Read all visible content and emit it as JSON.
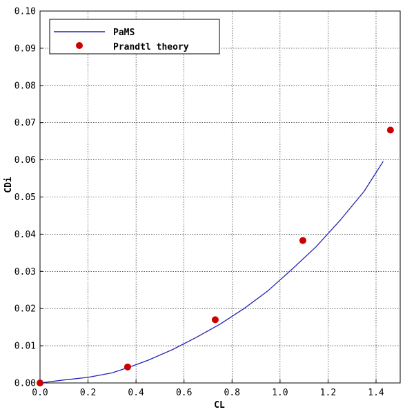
{
  "chart_data": {
    "type": "line",
    "xlabel": "CL",
    "ylabel": "CDi",
    "xlim": [
      0,
      1.5
    ],
    "ylim": [
      0,
      0.1
    ],
    "x_ticks": [
      0.0,
      0.2,
      0.4,
      0.6,
      0.8,
      1.0,
      1.2,
      1.4
    ],
    "x_tick_labels": [
      "0.0",
      "0.2",
      "0.4",
      "0.6",
      "0.8",
      "1.0",
      "1.2",
      "1.4"
    ],
    "y_ticks": [
      0.0,
      0.01,
      0.02,
      0.03,
      0.04,
      0.05,
      0.06,
      0.07,
      0.08,
      0.09,
      0.1
    ],
    "y_tick_labels": [
      "0.00",
      "0.01",
      "0.02",
      "0.03",
      "0.04",
      "0.05",
      "0.06",
      "0.07",
      "0.08",
      "0.09",
      "0.10"
    ],
    "grid": true,
    "legend_position": "top-left",
    "series": [
      {
        "name": "PaMS",
        "kind": "line",
        "color": "#2323b4",
        "x": [
          0.0,
          0.1,
          0.2,
          0.3,
          0.37,
          0.45,
          0.55,
          0.65,
          0.75,
          0.85,
          0.95,
          1.05,
          1.15,
          1.25,
          1.35,
          1.43
        ],
        "y": [
          0.0,
          0.0008,
          0.0015,
          0.0027,
          0.0042,
          0.0061,
          0.0089,
          0.0122,
          0.0158,
          0.02,
          0.0248,
          0.0306,
          0.0366,
          0.0437,
          0.0515,
          0.0596
        ]
      },
      {
        "name": "Prandtl theory",
        "kind": "scatter",
        "color": "#cc0000",
        "x": [
          0.0,
          0.365,
          0.73,
          1.095,
          1.46
        ],
        "y": [
          0.0,
          0.0043,
          0.017,
          0.0383,
          0.068
        ]
      }
    ]
  }
}
